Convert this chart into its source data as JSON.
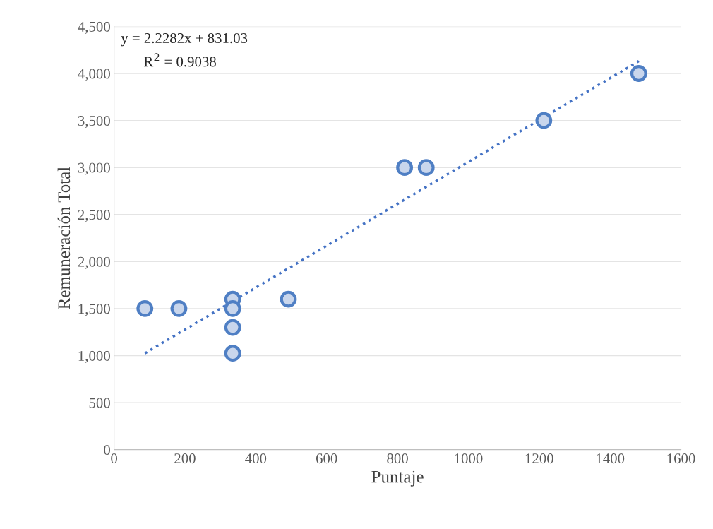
{
  "chart_data": {
    "type": "scatter",
    "xlabel": "Puntaje",
    "ylabel": "Remuneración Total",
    "xlim": [
      0,
      1600
    ],
    "xticks": [
      0,
      200,
      400,
      600,
      800,
      1000,
      1200,
      1400,
      1600
    ],
    "ylim": [
      0,
      4500
    ],
    "yticks": [
      {
        "value": 0,
        "label": "0"
      },
      {
        "value": 500,
        "label": "500"
      },
      {
        "value": 1000,
        "label": "1,000"
      },
      {
        "value": 1500,
        "label": "1,500"
      },
      {
        "value": 2000,
        "label": "2,000"
      },
      {
        "value": 2500,
        "label": "2,500"
      },
      {
        "value": 3000,
        "label": "3,000"
      },
      {
        "value": 3500,
        "label": "3,500"
      },
      {
        "value": 4000,
        "label": "4,000"
      },
      {
        "value": 4500,
        "label": "4,500"
      }
    ],
    "grid": "y",
    "legend": false,
    "series": [
      {
        "type": "scatter",
        "color": "#4f7fc4",
        "marker": "circle",
        "x": [
          87,
          183,
          335,
          335,
          335,
          335,
          492,
          820,
          881,
          1213,
          1481
        ],
        "values": [
          1500,
          1500,
          1600,
          1500,
          1300,
          1025,
          1600,
          3000,
          3000,
          3500,
          4000
        ]
      },
      {
        "type": "line",
        "color": "#4472c4",
        "marker": "none",
        "line_style": "dotted",
        "x": [
          87,
          1481
        ],
        "values": [
          1025,
          4131
        ]
      }
    ],
    "annotations": [
      "y = 2.2282x + 831.03",
      "R$^{2}$ = 0.9038"
    ]
  }
}
